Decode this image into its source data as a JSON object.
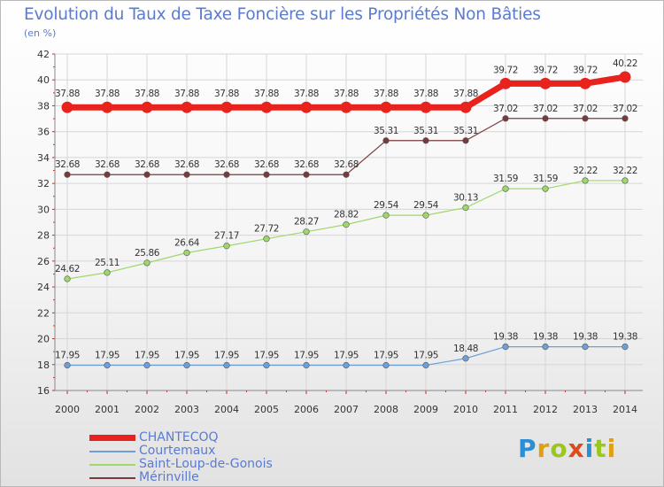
{
  "header": {
    "title": "Evolution du Taux de Taxe Foncière sur les Propriétés Non Bâties",
    "unit": "(en %)"
  },
  "logo": {
    "letters": [
      "P",
      "r",
      "o",
      "x",
      "i",
      "t",
      "i"
    ],
    "colors": [
      "#2b8fd6",
      "#e0a010",
      "#9bc61d",
      "#e04a1a",
      "#2b8fd6",
      "#9bc61d",
      "#e0a010"
    ]
  },
  "chart_data": {
    "type": "line",
    "title": "Evolution du Taux de Taxe Foncière sur les Propriétés Non Bâties",
    "ylabel": "(en %)",
    "xlabel": "",
    "ylim": [
      16,
      42
    ],
    "yticks": [
      16,
      18,
      20,
      22,
      24,
      26,
      28,
      30,
      32,
      34,
      36,
      38,
      40,
      42
    ],
    "grid": true,
    "categories": [
      "2000",
      "2001",
      "2002",
      "2003",
      "2004",
      "2005",
      "2006",
      "2007",
      "2008",
      "2009",
      "2010",
      "2011",
      "2012",
      "2013",
      "2014"
    ],
    "series": [
      {
        "name": "CHANTECOQ",
        "color": "#e8231e",
        "emphasis": true,
        "values": [
          37.88,
          37.88,
          37.88,
          37.88,
          37.88,
          37.88,
          37.88,
          37.88,
          37.88,
          37.88,
          37.88,
          39.72,
          39.72,
          39.72,
          40.22
        ],
        "labels": [
          "37.88",
          "37.88",
          "37.88",
          "37.88",
          "37.88",
          "37.88",
          "37.88",
          "37.88",
          "37.88",
          "37.88",
          "37.88",
          "39.72",
          "39.72",
          "39.72",
          "40.22"
        ]
      },
      {
        "name": "Courtemaux",
        "color": "#6ea0d6",
        "emphasis": false,
        "values": [
          17.95,
          17.95,
          17.95,
          17.95,
          17.95,
          17.95,
          17.95,
          17.95,
          17.95,
          17.95,
          18.48,
          19.38,
          19.38,
          19.38,
          19.38
        ],
        "labels": [
          "17.95",
          "17.95",
          "17.95",
          "17.95",
          "17.95",
          "17.95",
          "17.95",
          "17.95",
          "17.95",
          "17.95",
          "18.48",
          "19.38",
          "19.38",
          "19.38",
          "19.38"
        ]
      },
      {
        "name": "Saint-Loup-de-Gonois",
        "color": "#9fd86a",
        "emphasis": false,
        "values": [
          24.62,
          25.11,
          25.86,
          26.64,
          27.17,
          27.72,
          28.27,
          28.82,
          29.54,
          29.54,
          30.13,
          31.59,
          31.59,
          32.22,
          32.22
        ],
        "labels": [
          "24.62",
          "25.11",
          "25.86",
          "26.64",
          "27.17",
          "27.72",
          "28.27",
          "28.82",
          "29.54",
          "29.54",
          "30.13",
          "31.59",
          "31.59",
          "32.22",
          "32.22"
        ]
      },
      {
        "name": "Mérinville",
        "color": "#7a3a3a",
        "emphasis": false,
        "values": [
          32.68,
          32.68,
          32.68,
          32.68,
          32.68,
          32.68,
          32.68,
          32.68,
          35.31,
          35.31,
          35.31,
          37.02,
          37.02,
          37.02,
          37.02
        ],
        "labels": [
          "32.68",
          "32.68",
          "32.68",
          "32.68",
          "32.68",
          "32.68",
          "32.68",
          "32.68",
          "35.31",
          "35.31",
          "35.31",
          "37.02",
          "37.02",
          "37.02",
          "37.02"
        ]
      }
    ]
  }
}
